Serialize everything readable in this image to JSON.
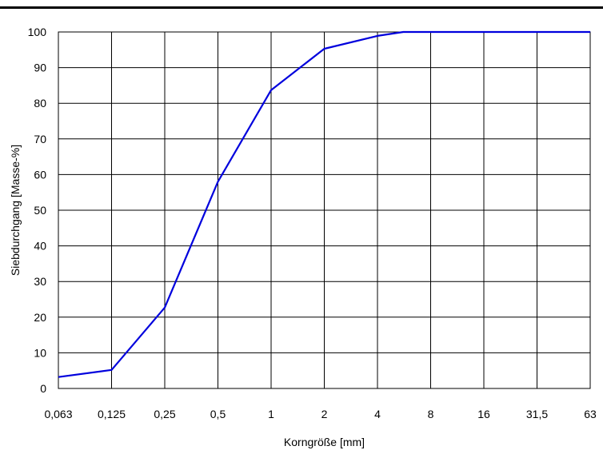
{
  "chart_data": {
    "type": "line",
    "title": "",
    "xlabel": "Korngröße [mm]",
    "ylabel": "Siebdurchgang [Masse-%]",
    "x_scale": "log2-like categorical ticks",
    "categories": [
      "0,063",
      "0,125",
      "0,25",
      "0,5",
      "1",
      "2",
      "4",
      "8",
      "16",
      "31,5",
      "63"
    ],
    "ylim": [
      0,
      100
    ],
    "yticks": [
      0,
      10,
      20,
      30,
      40,
      50,
      60,
      70,
      80,
      90,
      100
    ],
    "grid": true,
    "legend": "none",
    "series": [
      {
        "color": "#0000dd",
        "x": [
          0.063,
          0.125,
          0.25,
          0.5,
          1,
          2,
          4,
          5.6,
          8,
          16,
          31.5,
          63
        ],
        "y": [
          3.2,
          5.2,
          22.7,
          58,
          83.7,
          95.3,
          98.9,
          100,
          100,
          100,
          100,
          100
        ]
      }
    ]
  }
}
